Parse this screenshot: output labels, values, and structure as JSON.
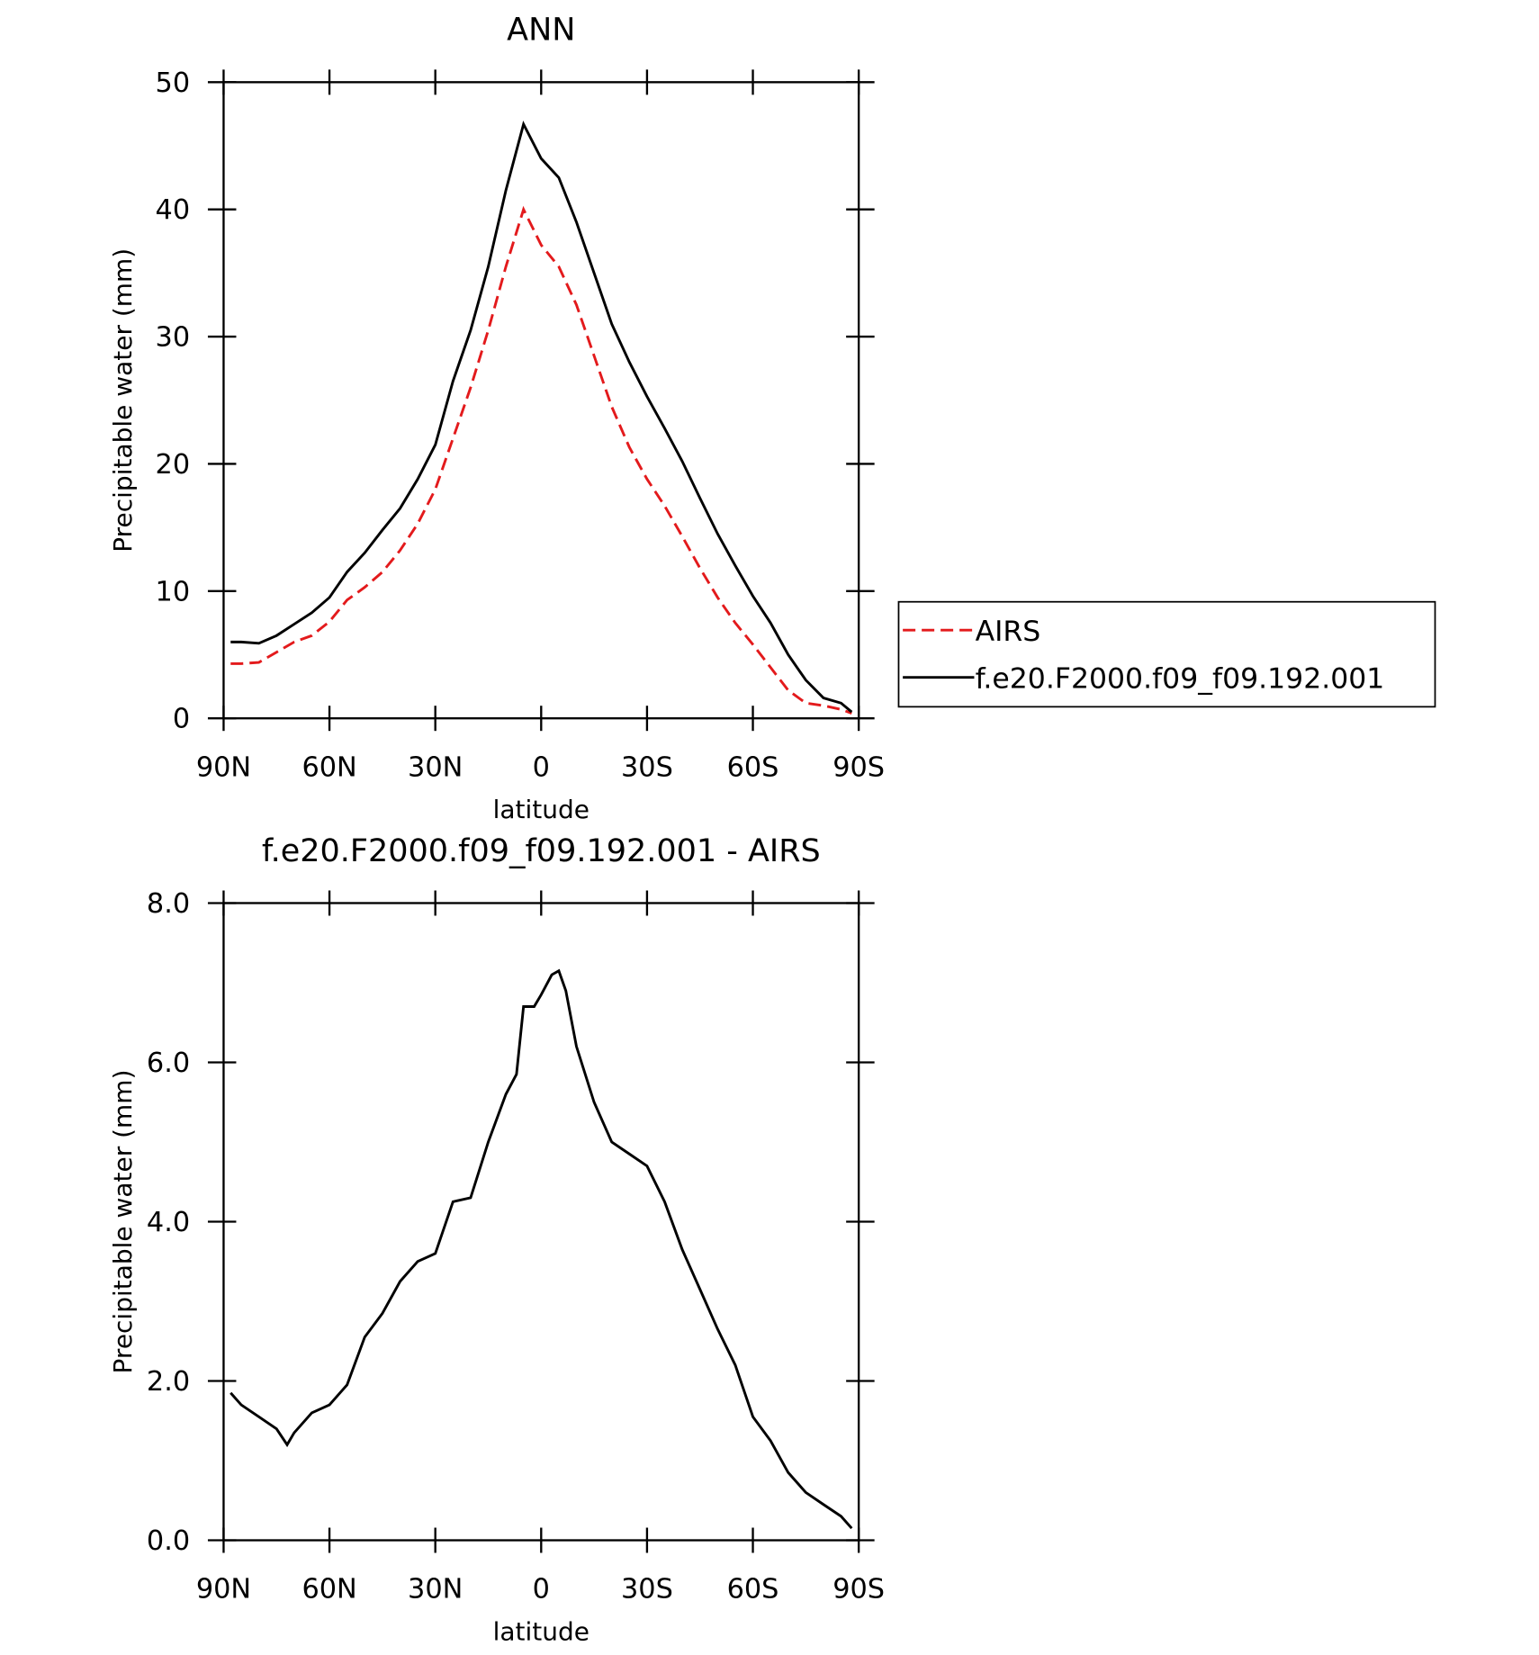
{
  "chart_data": [
    {
      "type": "line",
      "title": "ANN",
      "xlabel": "latitude",
      "ylabel": "Precipitable water (mm)",
      "x": [
        88,
        85,
        80,
        75,
        70,
        65,
        60,
        55,
        50,
        45,
        40,
        35,
        30,
        25,
        20,
        15,
        10,
        5,
        0,
        -5,
        -10,
        -15,
        -20,
        -25,
        -30,
        -35,
        -40,
        -45,
        -50,
        -55,
        -60,
        -65,
        -70,
        -75,
        -80,
        -85,
        -88
      ],
      "series": [
        {
          "name": "AIRS",
          "color": "#e31a1c",
          "linestyle": "dashed",
          "values": [
            4.3,
            4.3,
            4.4,
            5.2,
            6.0,
            6.5,
            7.6,
            9.3,
            10.3,
            11.5,
            13.2,
            15.3,
            18,
            22,
            26,
            30.5,
            35.5,
            40.0,
            37.2,
            35.5,
            32.5,
            28.5,
            24.5,
            21.3,
            18.8,
            16.7,
            14.3,
            11.8,
            9.5,
            7.5,
            5.8,
            4.0,
            2.2,
            1.2,
            1.0,
            0.7,
            0.4
          ]
        },
        {
          "name": "f.e20.F2000.f09_f09.192.001",
          "color": "#000000",
          "linestyle": "solid",
          "values": [
            6.0,
            6.0,
            5.9,
            6.5,
            7.4,
            8.3,
            9.5,
            11.5,
            13.0,
            14.8,
            16.5,
            18.8,
            21.5,
            26.5,
            30.5,
            35.5,
            41.5,
            46.7,
            44.0,
            42.5,
            39,
            35,
            31,
            28,
            25.3,
            22.8,
            20.2,
            17.3,
            14.5,
            12,
            9.6,
            7.5,
            5,
            3,
            1.6,
            1.2,
            0.5
          ]
        }
      ],
      "xlim": [
        90,
        -90
      ],
      "xticks": [
        {
          "value": 90,
          "label": "90N"
        },
        {
          "value": 60,
          "label": "60N"
        },
        {
          "value": 30,
          "label": "30N"
        },
        0,
        {
          "value": -30,
          "label": "30S"
        },
        {
          "value": -60,
          "label": "60S"
        },
        {
          "value": -90,
          "label": "90S"
        }
      ],
      "ylim": [
        0,
        50
      ],
      "yticks": [
        0,
        10,
        20,
        30,
        40,
        50
      ],
      "legend": "right"
    },
    {
      "type": "line",
      "title": "f.e20.F2000.f09_f09.192.001 - AIRS",
      "xlabel": "latitude",
      "ylabel": "Precipitable water (mm)",
      "x": [
        88,
        85,
        80,
        75,
        72,
        70,
        65,
        60,
        55,
        50,
        45,
        40,
        35,
        30,
        25,
        20,
        15,
        10,
        7,
        5,
        2,
        0,
        -3,
        -5,
        -7,
        -10,
        -15,
        -20,
        -25,
        -30,
        -35,
        -40,
        -45,
        -50,
        -55,
        -60,
        -65,
        -70,
        -75,
        -80,
        -85,
        -88
      ],
      "color": "#000000",
      "values": [
        1.85,
        1.7,
        1.55,
        1.4,
        1.2,
        1.35,
        1.6,
        1.7,
        1.95,
        2.55,
        2.85,
        3.25,
        3.5,
        3.6,
        4.25,
        4.3,
        5.0,
        5.6,
        5.85,
        6.7,
        6.7,
        6.85,
        7.1,
        7.15,
        6.9,
        6.2,
        5.5,
        5.0,
        4.85,
        4.7,
        4.25,
        3.65,
        3.15,
        2.65,
        2.2,
        1.55,
        1.25,
        0.85,
        0.6,
        0.45,
        0.3,
        0.15
      ],
      "xlim": [
        90,
        -90
      ],
      "xticks": [
        {
          "value": 90,
          "label": "90N"
        },
        {
          "value": 60,
          "label": "60N"
        },
        {
          "value": 30,
          "label": "30N"
        },
        0,
        {
          "value": -30,
          "label": "30S"
        },
        {
          "value": -60,
          "label": "60S"
        },
        {
          "value": -90,
          "label": "90S"
        }
      ],
      "ylim": [
        0,
        8
      ],
      "yticks": [
        {
          "value": 0,
          "label": "0.0"
        },
        {
          "value": 2,
          "label": "2.0"
        },
        {
          "value": 4,
          "label": "4.0"
        },
        {
          "value": 6,
          "label": "6.0"
        },
        {
          "value": 8,
          "label": "8.0"
        }
      ]
    }
  ]
}
